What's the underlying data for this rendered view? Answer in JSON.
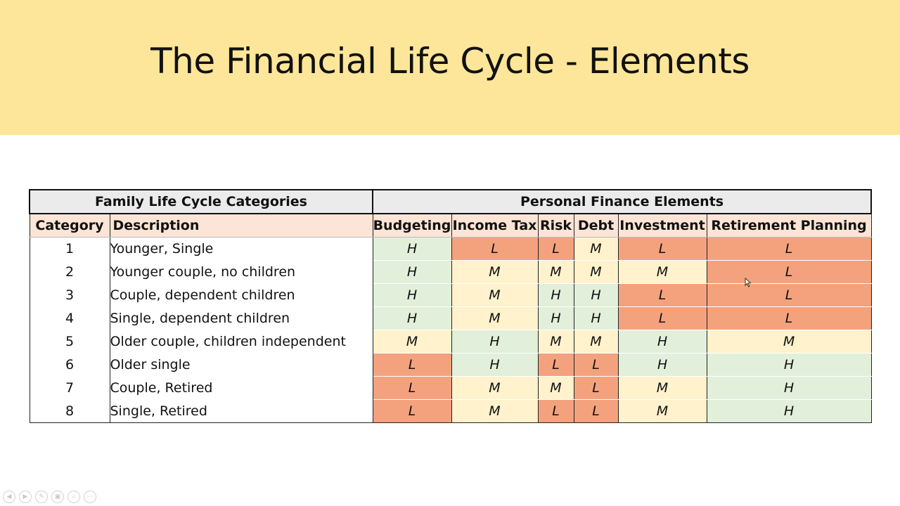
{
  "slide": {
    "title": "The Financial Life Cycle - Elements"
  },
  "table": {
    "group_headers": {
      "left": "Family Life Cycle Categories",
      "right": "Personal Finance Elements"
    },
    "columns": [
      "Category",
      "Description",
      "Budgeting",
      "Income Tax",
      "Risk",
      "Debt",
      "Investment",
      "Retirement Planning"
    ],
    "rows": [
      {
        "category": "1",
        "description": "Younger, Single",
        "levels": [
          "H",
          "L",
          "L",
          "M",
          "L",
          "L"
        ]
      },
      {
        "category": "2",
        "description": "Younger couple, no children",
        "levels": [
          "H",
          "M",
          "M",
          "M",
          "M",
          "L"
        ]
      },
      {
        "category": "3",
        "description": "Couple, dependent children",
        "levels": [
          "H",
          "M",
          "H",
          "H",
          "L",
          "L"
        ]
      },
      {
        "category": "4",
        "description": "Single, dependent children",
        "levels": [
          "H",
          "M",
          "H",
          "H",
          "L",
          "L"
        ]
      },
      {
        "category": "5",
        "description": "Older couple, children independent",
        "levels": [
          "M",
          "H",
          "M",
          "M",
          "H",
          "M"
        ]
      },
      {
        "category": "6",
        "description": "Older single",
        "levels": [
          "L",
          "H",
          "L",
          "L",
          "H",
          "H"
        ]
      },
      {
        "category": "7",
        "description": "Couple, Retired",
        "levels": [
          "L",
          "M",
          "M",
          "L",
          "M",
          "H"
        ]
      },
      {
        "category": "8",
        "description": "Single, Retired",
        "levels": [
          "L",
          "M",
          "L",
          "L",
          "M",
          "H"
        ]
      }
    ]
  },
  "level_colors": {
    "H": "#e2efda",
    "M": "#fff2cc",
    "L": "#f4a27e"
  },
  "toolbar": {
    "icons": [
      "previous-icon",
      "next-icon",
      "pen-icon",
      "slides-icon",
      "zoom-icon",
      "more-icon"
    ],
    "glyphs": [
      "◀",
      "▶",
      "✎",
      "▣",
      "⌕",
      "⋯"
    ]
  }
}
